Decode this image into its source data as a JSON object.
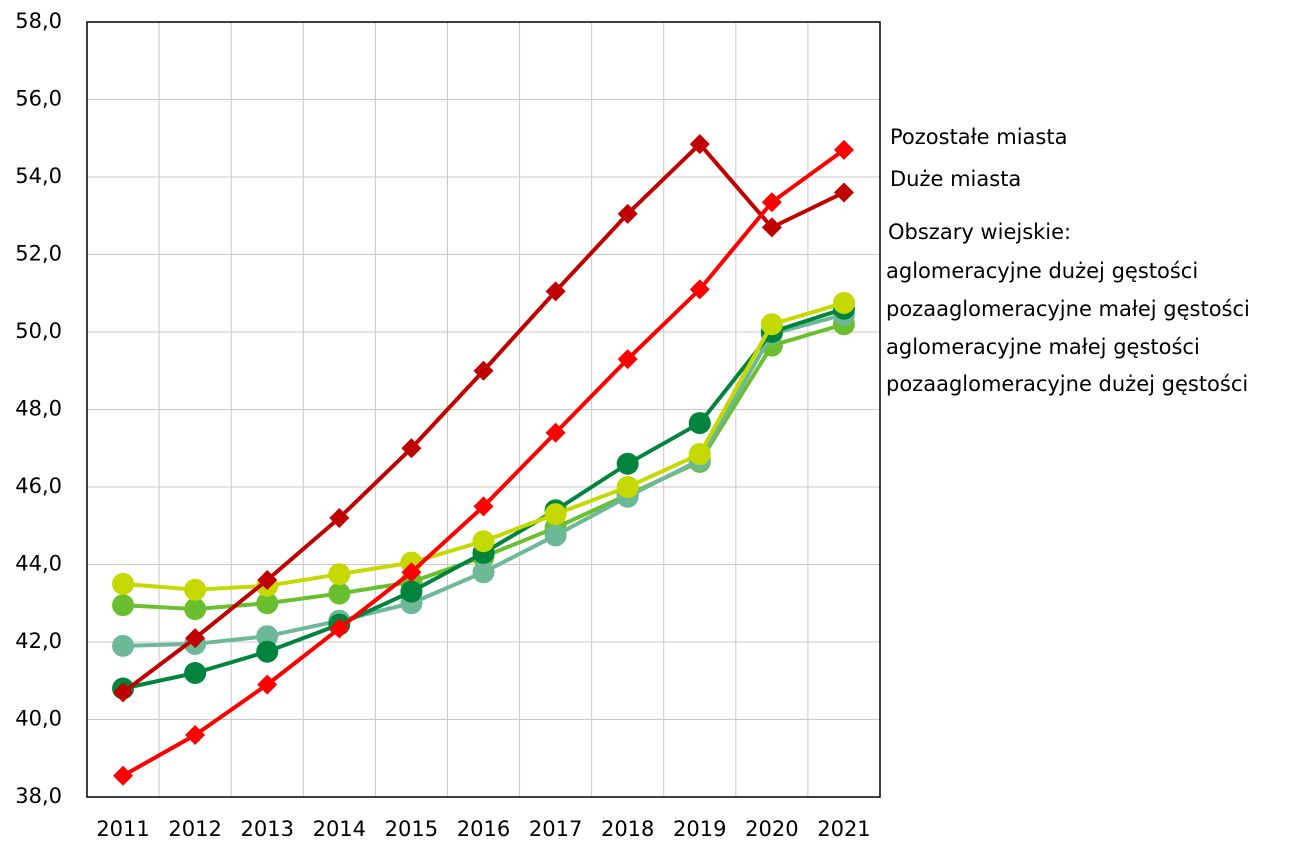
{
  "chart_data": {
    "type": "line",
    "categories": [
      "2011",
      "2012",
      "2013",
      "2014",
      "2015",
      "2016",
      "2017",
      "2018",
      "2019",
      "2020",
      "2021"
    ],
    "series": [
      {
        "name": "Pozostałe miasta",
        "color": "#ff0000",
        "marker": "diamond",
        "values": [
          38.55,
          39.6,
          40.9,
          42.35,
          43.8,
          45.5,
          47.4,
          49.3,
          51.1,
          53.35,
          54.7
        ]
      },
      {
        "name": "Duże miasta",
        "color": "#c00000",
        "marker": "diamond",
        "values": [
          40.7,
          42.1,
          43.6,
          45.2,
          47.0,
          49.0,
          51.05,
          53.05,
          54.85,
          52.7,
          53.6
        ]
      },
      {
        "name": "aglomeracyjne dużej gęstości",
        "color": "#c5d800",
        "marker": "circle",
        "values": [
          43.5,
          43.35,
          43.45,
          43.75,
          44.05,
          44.6,
          45.3,
          46.0,
          46.85,
          50.2,
          50.75
        ]
      },
      {
        "name": "pozaaglomeracyjne małej gęstości",
        "color": "#00843d",
        "marker": "circle",
        "values": [
          40.8,
          41.2,
          41.75,
          42.45,
          43.3,
          44.3,
          45.4,
          46.6,
          47.65,
          50.0,
          50.6
        ]
      },
      {
        "name": "aglomeracyjne małej gęstości",
        "color": "#6db896",
        "marker": "circle",
        "values": [
          41.9,
          41.95,
          42.15,
          42.55,
          43.0,
          43.8,
          44.75,
          45.75,
          46.7,
          49.95,
          50.45
        ]
      },
      {
        "name": "pozaaglomeracyjne dużej gęstości",
        "color": "#6abf2f",
        "marker": "circle",
        "values": [
          42.95,
          42.85,
          43.0,
          43.25,
          43.55,
          44.2,
          44.95,
          45.8,
          46.65,
          49.65,
          50.2
        ]
      }
    ],
    "legend_heading": "Obszary wiejskie:",
    "ylim": [
      38,
      58
    ],
    "yticks": [
      {
        "value": 38,
        "label": "38,0"
      },
      {
        "value": 40,
        "label": "40,0"
      },
      {
        "value": 42,
        "label": "42,0"
      },
      {
        "value": 44,
        "label": "44,0"
      },
      {
        "value": 46,
        "label": "46,0"
      },
      {
        "value": 48,
        "label": "48,0"
      },
      {
        "value": 50,
        "label": "50,0"
      },
      {
        "value": 52,
        "label": "52,0"
      },
      {
        "value": 54,
        "label": "54,0"
      },
      {
        "value": 56,
        "label": "56,0"
      },
      {
        "value": 58,
        "label": "58,0"
      }
    ],
    "grid": true,
    "legend": "right"
  }
}
